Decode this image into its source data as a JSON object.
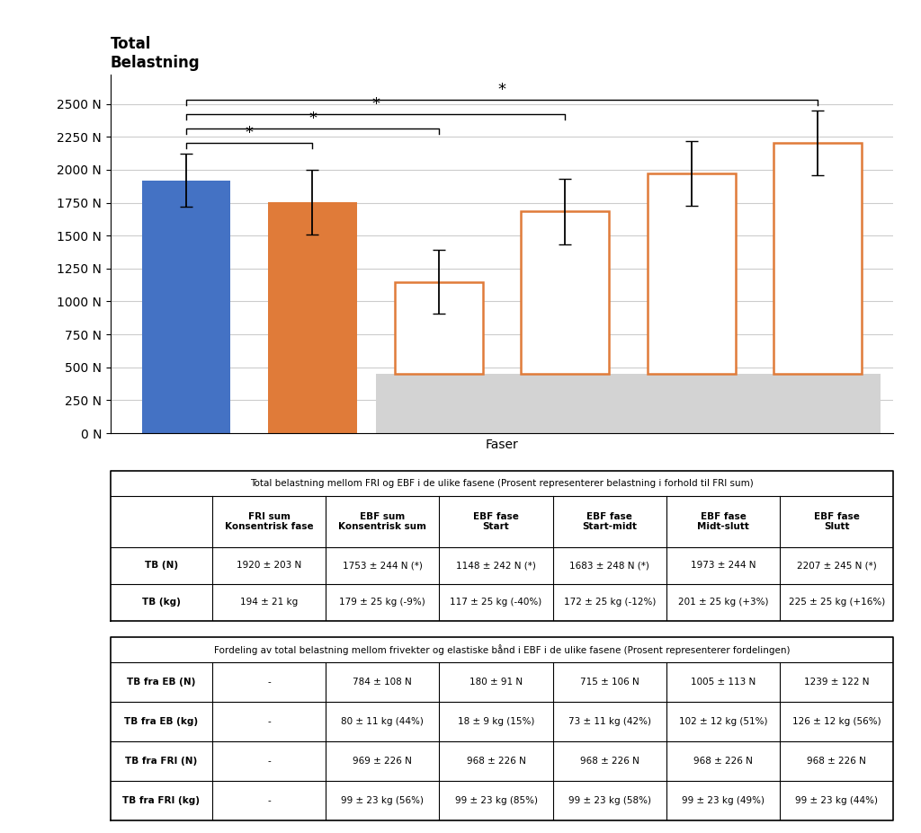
{
  "chart_data": {
    "type": "bar",
    "title": "Total\nBelastning",
    "x_label": "Faser",
    "categories": [
      null,
      null,
      null,
      null,
      null,
      null
    ],
    "values": [
      1920,
      1753,
      1148,
      1683,
      1973,
      2207
    ],
    "errors": [
      203,
      244,
      242,
      248,
      244,
      245
    ],
    "bottoms": [
      0,
      0,
      450,
      450,
      450,
      450
    ],
    "colors": [
      "#4472C4",
      "#E07B39",
      "#E07B39",
      "#E07B39",
      "#E07B39",
      "#E07B39"
    ],
    "ylim": [
      0,
      2720
    ],
    "yticks": [
      {
        "value": 0,
        "label": "0 N"
      },
      {
        "value": 250,
        "label": "250 N"
      },
      {
        "value": 500,
        "label": "500 N"
      },
      {
        "value": 750,
        "label": "750 N"
      },
      {
        "value": 1000,
        "label": "1000 N"
      },
      {
        "value": 1250,
        "label": "1250 N"
      },
      {
        "value": 1500,
        "label": "1500 N"
      },
      {
        "value": 1750,
        "label": "1750 N"
      },
      {
        "value": 2000,
        "label": "2000 N"
      },
      {
        "value": 2250,
        "label": "2250 N"
      },
      {
        "value": 2500,
        "label": "2500 N"
      }
    ],
    "grid": true,
    "tick_labels": "y",
    "annotations": [
      {
        "from": 0,
        "to": 1,
        "label": "*"
      },
      {
        "from": 0,
        "to": 2,
        "label": "*"
      },
      {
        "from": 0,
        "to": 3,
        "label": "*"
      },
      {
        "from": 0,
        "to": 5,
        "label": "*"
      }
    ],
    "tables": [
      {
        "title": "Total belastning mellom FRI og EBF i de ulike fasene (Prosent representerer belastning i forhold til FRI sum)",
        "column_headers": [
          "FRI sum\nKonsentrisk fase",
          "EBF sum\nKonsentrisk sum",
          "EBF fase\nStart",
          "EBF fase\nStart-midt",
          "EBF fase\nMidt-slutt",
          "EBF fase\nSlutt"
        ],
        "rows": [
          {
            "label": "TB (N)",
            "values": [
              "1920 ± 203 N",
              "1753 ± 244 N (*)",
              "1148 ± 242 N (*)",
              "1683 ± 248 N (*)",
              "1973 ± 244 N",
              "2207 ± 245 N (*)"
            ]
          },
          {
            "label": "TB (kg)",
            "values": [
              "194 ± 21 kg",
              "179 ± 25 kg (-9%)",
              "117 ± 25 kg (-40%)",
              "172 ± 25 kg (-12%)",
              "201 ± 25 kg (+3%)",
              "225 ± 25 kg (+16%)"
            ]
          }
        ]
      },
      {
        "title": "Fordeling av total belastning mellom frivekter og elastiske bånd i EBF i de ulike fasene (Prosent representerer fordelingen)",
        "rows": [
          {
            "label": "TB fra EB (N)",
            "values": [
              "-",
              "784 ± 108 N",
              "180 ± 91 N",
              "715 ± 106 N",
              "1005 ± 113 N",
              "1239 ± 122 N"
            ]
          },
          {
            "label": "TB fra EB (kg)",
            "values": [
              "-",
              "80 ± 11 kg (44%)",
              "18 ± 9 kg (15%)",
              "73 ± 11 kg (42%)",
              "102 ± 12 kg (51%)",
              "126 ± 12 kg (56%)"
            ]
          },
          {
            "label": "TB fra FRI (N)",
            "values": [
              "-",
              "969 ± 226 N",
              "968 ± 226 N",
              "968 ± 226 N",
              "968 ± 226 N",
              "968 ± 226 N"
            ]
          },
          {
            "label": "TB fra FRI (kg)",
            "values": [
              "-",
              "99 ± 23 kg (56%)",
              "99 ± 23 kg (85%)",
              "99 ± 23 kg (58%)",
              "99 ± 23 kg (49%)",
              "99 ± 23 kg (44%)"
            ]
          }
        ]
      }
    ]
  }
}
